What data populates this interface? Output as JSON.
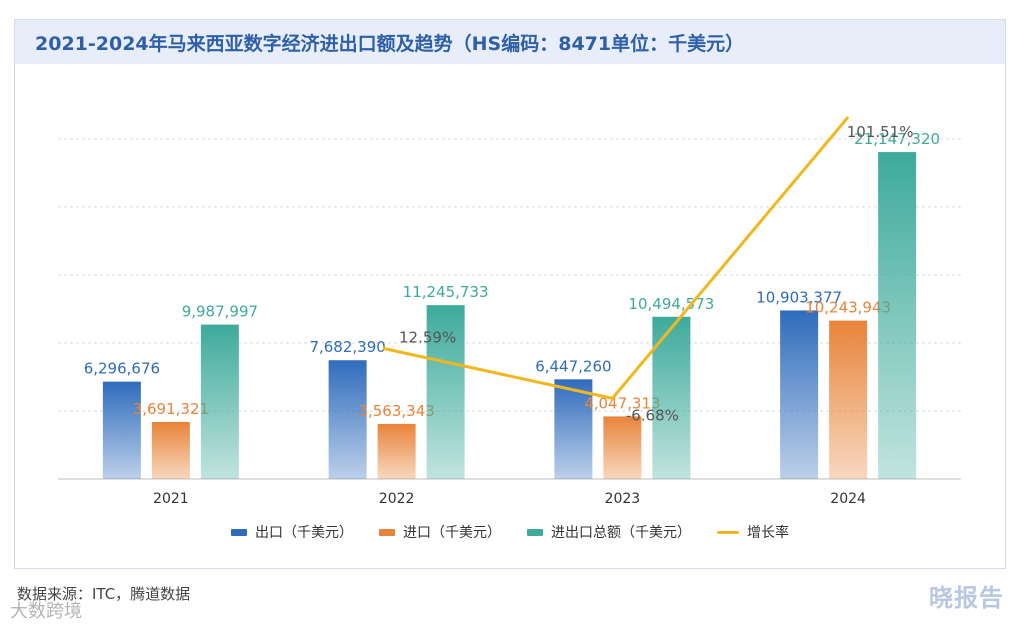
{
  "title": "2021-2024年马来西亚数字经济进出口额及趋势（HS编码：8471单位：千美元）",
  "chart_data": {
    "type": "bar",
    "categories": [
      "2021",
      "2022",
      "2023",
      "2024"
    ],
    "series": [
      {
        "name": "出口（千美元）",
        "values": [
          6296676,
          7682390,
          6447260,
          10903377
        ],
        "labels": [
          "6,296,676",
          "7,682,390",
          "6,447,260",
          "10,903,377"
        ],
        "color": "#2f6cbc"
      },
      {
        "name": "进口（千美元）",
        "values": [
          3691321,
          3563343,
          4047313,
          10243943
        ],
        "labels": [
          "3,691,321",
          "3,563,343",
          "4,047,313",
          "10,243,943"
        ],
        "color": "#e8843a"
      },
      {
        "name": "进出口总额（千美元）",
        "values": [
          9987997,
          11245733,
          10494573,
          21147320
        ],
        "labels": [
          "9,987,997",
          "11,245,733",
          "10,494,573",
          "21,147,320"
        ],
        "color": "#3daa9b"
      }
    ],
    "growth_line": {
      "name": "增长率",
      "categories": [
        "2022",
        "2023",
        "2024"
      ],
      "values": [
        12.59,
        -6.68,
        101.51
      ],
      "labels": [
        "12.59%",
        "-6.68%",
        "101.51%"
      ],
      "color": "#f2b71f"
    },
    "ylim": [
      0,
      24000000
    ],
    "grid": true,
    "legend_position": "bottom"
  },
  "legend": {
    "export": "出口（千美元）",
    "import": "进口（千美元）",
    "total": "进出口总额（千美元）",
    "growth": "增长率"
  },
  "footer": {
    "source": "数据来源：ITC，腾道数据",
    "watermark": "大数跨境",
    "brand": "晓报告"
  }
}
